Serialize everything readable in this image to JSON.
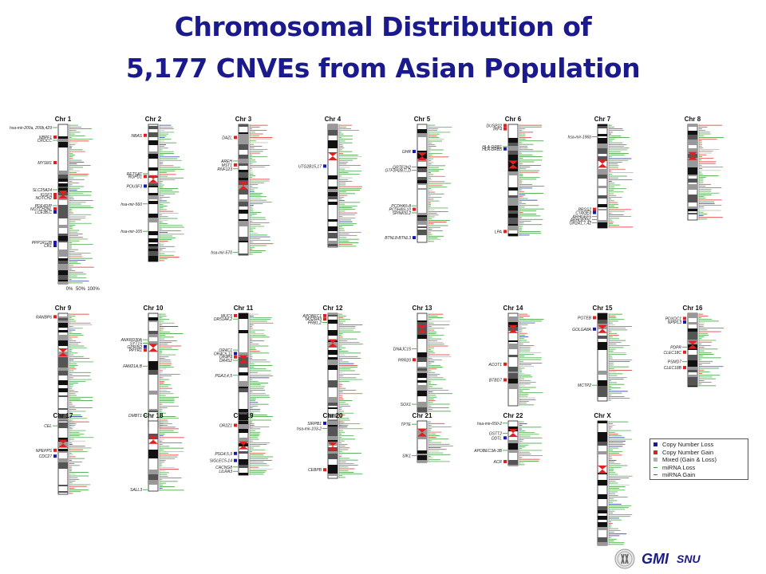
{
  "title_line1": "Chromosomal Distribution of",
  "title_line2": "5,177 CNVEs from Asian Population",
  "colors": {
    "title": "#1a1a8c",
    "loss": "#1a1aa8",
    "gain": "#e02020",
    "mixed": "#b0b0b0",
    "mirna_loss": "#2a9a2a",
    "mirna_gain": "#e02020",
    "band_dark": "#111111",
    "centromere": "#e02020"
  },
  "scale_labels": [
    "0%",
    "50%",
    "100%"
  ],
  "legend": [
    {
      "kind": "box",
      "color": "#1a1aa8",
      "label": "Copy Number Loss"
    },
    {
      "kind": "box",
      "color": "#e02020",
      "label": "Copy Number Gain"
    },
    {
      "kind": "box",
      "color": "#b0b0b0",
      "label": "Mixed (Gain & Loss)"
    },
    {
      "kind": "line",
      "color": "#2a9a2a",
      "label": "miRNA Loss"
    },
    {
      "kind": "line",
      "color": "#e02020",
      "label": "miRNA Gain"
    }
  ],
  "logo": {
    "text": "GMI",
    "text2": "SNU"
  },
  "chromosomes": [
    {
      "name": "Chr 1",
      "relsize": 1.0,
      "centromere": 0.44,
      "seed": 11,
      "labels": [
        {
          "text": "hsa-mir-200a, 200b,429",
          "pos": 0.02,
          "type": "mirna"
        },
        {
          "text": "NBPF1",
          "pos": 0.08,
          "type": "gain"
        },
        {
          "text": "CROCC",
          "pos": 0.1,
          "type": "mirna"
        },
        {
          "text": "MYSM1",
          "pos": 0.24,
          "type": "gain"
        },
        {
          "text": "SLC25A24",
          "pos": 0.41,
          "type": "mirna"
        },
        {
          "text": "IGSF3",
          "pos": 0.44,
          "type": "gain"
        },
        {
          "text": "NOTCH2",
          "pos": 0.46,
          "type": "gain"
        },
        {
          "text": "PDE4DIP",
          "pos": 0.51,
          "type": "mirna"
        },
        {
          "text": "NOTCH2NL",
          "pos": 0.53,
          "type": "gain"
        },
        {
          "text": "LCE3B,C",
          "pos": 0.55,
          "type": "loss"
        },
        {
          "text": "PPP1R12B",
          "pos": 0.74,
          "type": "loss"
        },
        {
          "text": "CR1",
          "pos": 0.76,
          "type": "loss"
        }
      ]
    },
    {
      "name": "Chr 2",
      "relsize": 0.86,
      "centromere": 0.4,
      "seed": 22,
      "labels": [
        {
          "text": "NBAS",
          "pos": 0.08,
          "type": "gain"
        },
        {
          "text": "RETSAT",
          "pos": 0.36,
          "type": "mirna"
        },
        {
          "text": "RGPD1",
          "pos": 0.38,
          "type": "gain"
        },
        {
          "text": "POU3F3",
          "pos": 0.45,
          "type": "loss"
        },
        {
          "text": "hsa-mir-560",
          "pos": 0.58,
          "type": "mirna"
        },
        {
          "text": "hsa-mir-105",
          "pos": 0.78,
          "type": "mirna"
        }
      ]
    },
    {
      "name": "Chr 3",
      "relsize": 0.82,
      "centromere": 0.47,
      "seed": 33,
      "labels": [
        {
          "text": "DAZL",
          "pos": 0.1,
          "type": "gain"
        },
        {
          "text": "AREH",
          "pos": 0.28,
          "type": "mirna"
        },
        {
          "text": "MST1",
          "pos": 0.31,
          "type": "gain"
        },
        {
          "text": "RNF123",
          "pos": 0.34,
          "type": "mirna"
        },
        {
          "text": "hsa-mir-570",
          "pos": 0.98,
          "type": "mirna"
        }
      ]
    },
    {
      "name": "Chr 4",
      "relsize": 0.77,
      "centromere": 0.26,
      "seed": 44,
      "labels": [
        {
          "text": "UTG2B15,17",
          "pos": 0.34,
          "type": "loss"
        }
      ]
    },
    {
      "name": "Chr 5",
      "relsize": 0.74,
      "centromere": 0.27,
      "seed": 55,
      "labels": [
        {
          "text": "GHR",
          "pos": 0.23,
          "type": "loss"
        },
        {
          "text": "GRTF2H2",
          "pos": 0.36,
          "type": "mirna"
        },
        {
          "text": "GTF2H2B,C,D",
          "pos": 0.39,
          "type": "mirna"
        },
        {
          "text": "PCDHA5-8",
          "pos": 0.69,
          "type": "mirna"
        },
        {
          "text": "PCDHA9-10",
          "pos": 0.72,
          "type": "gain"
        },
        {
          "text": "SPINK5L2",
          "pos": 0.75,
          "type": "mirna"
        },
        {
          "text": "BTNL8-BTNL3",
          "pos": 0.96,
          "type": "loss"
        }
      ]
    },
    {
      "name": "Chr 6",
      "relsize": 0.7,
      "centromere": 0.36,
      "seed": 66,
      "labels": [
        {
          "text": "DUSP22",
          "pos": 0.01,
          "type": "gain"
        },
        {
          "text": "IRF4",
          "pos": 0.04,
          "type": "gain"
        },
        {
          "text": "HLA-DRB1",
          "pos": 0.2,
          "type": "mirna"
        },
        {
          "text": "HLA-DRB5",
          "pos": 0.22,
          "type": "loss"
        },
        {
          "text": "LPA",
          "pos": 0.96,
          "type": "gain"
        }
      ]
    },
    {
      "name": "Chr 7",
      "relsize": 0.65,
      "centromere": 0.38,
      "seed": 77,
      "labels": [
        {
          "text": "hsa-mir-196b",
          "pos": 0.12,
          "type": "mirna"
        },
        {
          "text": "PRSS2",
          "pos": 0.82,
          "type": "gain"
        },
        {
          "text": "CTAGE4",
          "pos": 0.85,
          "type": "loss"
        },
        {
          "text": "ARHGEF5",
          "pos": 0.89,
          "type": "mirna"
        },
        {
          "text": "ARHGEF5L",
          "pos": 0.92,
          "type": "mirna"
        },
        {
          "text": "OR2A1,7,42",
          "pos": 0.95,
          "type": "mirna"
        }
      ]
    },
    {
      "name": "Chr 8",
      "relsize": 0.6,
      "centromere": 0.33,
      "seed": 88,
      "labels": []
    },
    {
      "name": "Chr 9",
      "relsize": 0.72,
      "centromere": 0.34,
      "seed": 99,
      "labels": [
        {
          "text": "RANBP6",
          "pos": 0.03,
          "type": "gain"
        },
        {
          "text": "CEL",
          "pos": 0.98,
          "type": "mirna"
        }
      ]
    },
    {
      "name": "Chr 10",
      "relsize": 0.72,
      "centromere": 0.3,
      "seed": 110,
      "labels": [
        {
          "text": "ANKRD30A",
          "pos": 0.23,
          "type": "mirna"
        },
        {
          "text": "SYT15",
          "pos": 0.26,
          "type": "mirna"
        },
        {
          "text": "GPRIN2",
          "pos": 0.29,
          "type": "loss"
        },
        {
          "text": "PPYR1",
          "pos": 0.32,
          "type": "gain"
        },
        {
          "text": "FAM21A,B",
          "pos": 0.46,
          "type": "mirna"
        },
        {
          "text": "DMBT1",
          "pos": 0.89,
          "type": "mirna"
        }
      ]
    },
    {
      "name": "Chr 11",
      "relsize": 0.72,
      "centromere": 0.4,
      "seed": 121,
      "labels": [
        {
          "text": "MUC5",
          "pos": 0.02,
          "type": "gain"
        },
        {
          "text": "OR51A4,2",
          "pos": 0.05,
          "type": "mirna"
        },
        {
          "text": "OR4C1",
          "pos": 0.32,
          "type": "mirna"
        },
        {
          "text": "OR4C5,11",
          "pos": 0.35,
          "type": "loss"
        },
        {
          "text": "OR4P4",
          "pos": 0.38,
          "type": "gain"
        },
        {
          "text": "OR4S2",
          "pos": 0.41,
          "type": "mirna"
        },
        {
          "text": "PGA3,4,5",
          "pos": 0.54,
          "type": "mirna"
        }
      ]
    },
    {
      "name": "Chr 12",
      "relsize": 0.72,
      "centromere": 0.26,
      "seed": 132,
      "labels": [
        {
          "text": "APOBEC1",
          "pos": 0.02,
          "type": "gain"
        },
        {
          "text": "TAS2R43",
          "pos": 0.05,
          "type": "gain"
        },
        {
          "text": "PRB1,2",
          "pos": 0.08,
          "type": "mirna"
        }
      ]
    },
    {
      "name": "Chr 13",
      "relsize": 0.62,
      "centromere": 0.16,
      "seed": 143,
      "labels": [
        {
          "text": "DNAJC15",
          "pos": 0.36,
          "type": "mirna"
        },
        {
          "text": "PRR20",
          "pos": 0.47,
          "type": "gain"
        },
        {
          "text": "SOX1",
          "pos": 0.92,
          "type": "mirna"
        }
      ]
    },
    {
      "name": "Chr 14",
      "relsize": 0.58,
      "centromere": 0.17,
      "seed": 154,
      "labels": [
        {
          "text": "ACOT1",
          "pos": 0.55,
          "type": "gain"
        },
        {
          "text": "BTBD7",
          "pos": 0.72,
          "type": "gain"
        }
      ]
    },
    {
      "name": "Chr 15",
      "relsize": 0.55,
      "centromere": 0.18,
      "seed": 165,
      "labels": [
        {
          "text": "POTEB",
          "pos": 0.05,
          "type": "gain"
        },
        {
          "text": "GOLGA8A",
          "pos": 0.18,
          "type": "loss"
        },
        {
          "text": "MCTP2",
          "pos": 0.82,
          "type": "mirna"
        }
      ]
    },
    {
      "name": "Chr 16",
      "relsize": 0.46,
      "centromere": 0.43,
      "seed": 176,
      "labels": [
        {
          "text": "PDXDC1",
          "pos": 0.07,
          "type": "gain"
        },
        {
          "text": "NPIPL3",
          "pos": 0.12,
          "type": "loss"
        },
        {
          "text": "PDPR",
          "pos": 0.46,
          "type": "mirna"
        },
        {
          "text": "CLEC18C",
          "pos": 0.53,
          "type": "gain"
        },
        {
          "text": "PSMD7",
          "pos": 0.66,
          "type": "mirna"
        },
        {
          "text": "CLEC18B",
          "pos": 0.74,
          "type": "gain"
        }
      ]
    },
    {
      "name": "Chr 17",
      "relsize": 0.46,
      "centromere": 0.31,
      "seed": 187,
      "labels": [
        {
          "text": "NPEPPS",
          "pos": 0.4,
          "type": "gain"
        },
        {
          "text": "CDC27",
          "pos": 0.48,
          "type": "loss"
        }
      ]
    },
    {
      "name": "Chr 18",
      "relsize": 0.44,
      "centromere": 0.27,
      "seed": 198,
      "labels": [
        {
          "text": "SALL3",
          "pos": 0.98,
          "type": "mirna"
        }
      ]
    },
    {
      "name": "Chr 19",
      "relsize": 0.34,
      "centromere": 0.45,
      "seed": 209,
      "labels": [
        {
          "text": "OR2Z1",
          "pos": 0.08,
          "type": "gain"
        },
        {
          "text": "PSG4,5,9",
          "pos": 0.6,
          "type": "loss"
        },
        {
          "text": "SIGLEC5-14",
          "pos": 0.73,
          "type": "loss"
        },
        {
          "text": "CACNG8",
          "pos": 0.85,
          "type": "mirna"
        },
        {
          "text": "LILRA3",
          "pos": 0.93,
          "type": "mirna"
        }
      ]
    },
    {
      "name": "Chr 20",
      "relsize": 0.36,
      "centromere": 0.44,
      "seed": 220,
      "labels": [
        {
          "text": "SIRPB1",
          "pos": 0.04,
          "type": "loss"
        },
        {
          "text": "hsa-mir-103-2",
          "pos": 0.13,
          "type": "mirna"
        },
        {
          "text": "CEBPB",
          "pos": 0.85,
          "type": "gain"
        }
      ]
    },
    {
      "name": "Chr 21",
      "relsize": 0.26,
      "centromere": 0.28,
      "seed": 231,
      "labels": [
        {
          "text": "TPTE",
          "pos": 0.08,
          "type": "mirna"
        },
        {
          "text": "SIK1",
          "pos": 0.84,
          "type": "mirna"
        }
      ]
    },
    {
      "name": "Chr 22",
      "relsize": 0.28,
      "centromere": 0.27,
      "seed": 242,
      "labels": [
        {
          "text": "hsa-mir-650-2",
          "pos": 0.05,
          "type": "mirna"
        },
        {
          "text": "GSTT2",
          "pos": 0.28,
          "type": "mirna"
        },
        {
          "text": "DDTL",
          "pos": 0.38,
          "type": "loss"
        },
        {
          "text": "APOBEC3A-3B",
          "pos": 0.66,
          "type": "mirna"
        },
        {
          "text": "ACR",
          "pos": 0.91,
          "type": "gain"
        }
      ]
    },
    {
      "name": "Chr X",
      "relsize": 0.78,
      "centromere": 0.39,
      "seed": 253,
      "labels": []
    }
  ]
}
